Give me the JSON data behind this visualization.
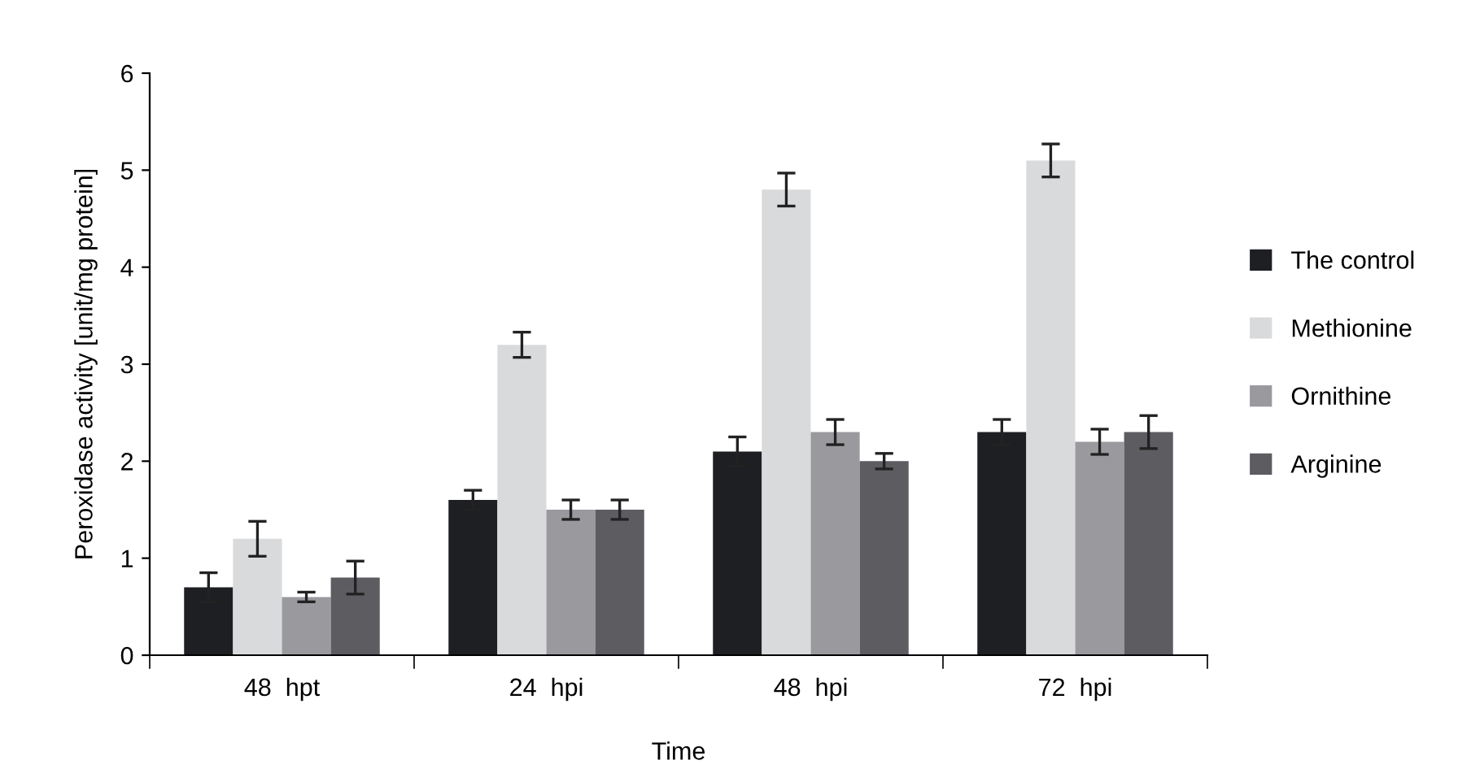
{
  "chart_data": {
    "type": "bar",
    "xlabel": "Time",
    "ylabel": "Peroxidase activity [unit/mg protein]",
    "categories": [
      "48  hpt",
      "24  hpi",
      "48  hpi",
      "72  hpi"
    ],
    "series": [
      {
        "name": "The control",
        "color": "#1e1f22",
        "values": [
          0.7,
          1.6,
          2.1,
          2.3
        ],
        "errors": [
          0.15,
          0.1,
          0.15,
          0.13
        ]
      },
      {
        "name": "Methionine",
        "color": "#d9dadc",
        "values": [
          1.2,
          3.2,
          4.8,
          5.1
        ],
        "errors": [
          0.18,
          0.13,
          0.17,
          0.17
        ]
      },
      {
        "name": "Ornithine",
        "color": "#9a999e",
        "values": [
          0.6,
          1.5,
          2.3,
          2.2
        ],
        "errors": [
          0.05,
          0.1,
          0.13,
          0.13
        ]
      },
      {
        "name": "Arginine",
        "color": "#5d5c61",
        "values": [
          0.8,
          1.5,
          2.0,
          2.3
        ],
        "errors": [
          0.17,
          0.1,
          0.08,
          0.17
        ]
      }
    ],
    "ylim": [
      0,
      6
    ],
    "yticks": [
      0,
      1,
      2,
      3,
      4,
      5,
      6
    ],
    "grid": false,
    "legend": "right"
  }
}
